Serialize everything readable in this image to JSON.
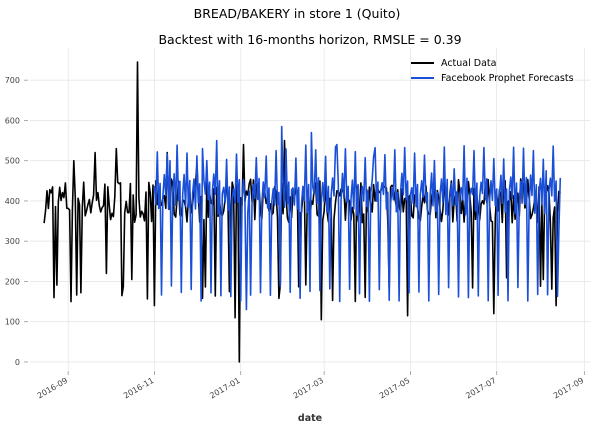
{
  "chart_data": {
    "type": "line",
    "suptitle": "BREAD/BAKERY in store 1 (Quito)",
    "title": "Backtest with 16-months horizon, RMSLE = 0.39",
    "xlabel": "date",
    "ylabel": "",
    "xlim": [
      "2016-08-05",
      "2017-09-05"
    ],
    "ylim": [
      -20,
      780
    ],
    "x_ticks": [
      "2016-09",
      "2016-11",
      "2017-01",
      "2017-03",
      "2017-05",
      "2017-07",
      "2017-09"
    ],
    "y_ticks": [
      0,
      100,
      200,
      300,
      400,
      500,
      600,
      700
    ],
    "grid": true,
    "legend_position": "top-right",
    "series": [
      {
        "name": "Actual Data",
        "color": "#000000",
        "start": "2016-08-15",
        "end": "2017-08-15",
        "baseline": 400,
        "keypoints": [
          [
            "2016-08-22",
            160
          ],
          [
            "2016-09-03",
            150
          ],
          [
            "2016-09-05",
            500
          ],
          [
            "2016-09-20",
            520
          ],
          [
            "2016-09-28",
            220
          ],
          [
            "2016-10-05",
            530
          ],
          [
            "2016-10-20",
            745
          ],
          [
            "2016-10-22",
            360
          ],
          [
            "2016-11-01",
            140
          ],
          [
            "2016-11-10",
            520
          ],
          [
            "2016-12-01",
            490
          ],
          [
            "2016-12-28",
            110
          ],
          [
            "2016-12-31",
            0
          ],
          [
            "2017-01-03",
            540
          ],
          [
            "2017-02-01",
            550
          ],
          [
            "2017-02-27",
            105
          ],
          [
            "2017-04-29",
            115
          ],
          [
            "2017-06-29",
            120
          ],
          [
            "2017-08-12",
            140
          ]
        ]
      },
      {
        "name": "Facebook Prophet Forecasts",
        "color": "#1a4fd8",
        "start": "2016-11-01",
        "end": "2017-08-15",
        "weekly_profile": [
          170,
          410,
          450,
          400,
          520,
          385,
          440
        ],
        "keypoints": [
          [
            "2016-11-12",
            500
          ],
          [
            "2016-12-05",
            530
          ],
          [
            "2016-12-15",
            550
          ],
          [
            "2017-01-05",
            130
          ],
          [
            "2017-01-30",
            585
          ],
          [
            "2017-02-20",
            570
          ],
          [
            "2017-03-10",
            540
          ],
          [
            "2017-04-05",
            510
          ],
          [
            "2017-06-01",
            480
          ],
          [
            "2017-08-05",
            475
          ],
          [
            "2017-08-14",
            330
          ]
        ]
      }
    ]
  }
}
